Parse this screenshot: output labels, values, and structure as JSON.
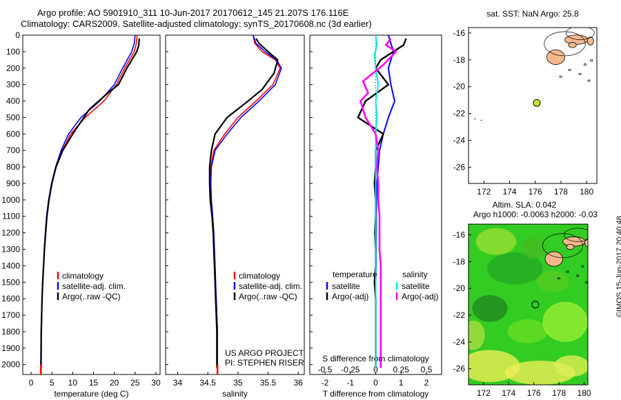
{
  "header": {
    "line1": "Argo profile: AO 5901910_311 10-Jun-2017 20170612_145 21.207S 176.116E",
    "line2": "Climatology: CARS2009. Satellite-adjusted climatology: synTS_20170608.nc (3d earlier)"
  },
  "side_stamp": "©IMOS 15-Jun-2017 20:40:48",
  "colors": {
    "climatology": "#ff0000",
    "satellite": "#0000ff",
    "argo": "#000000",
    "salinity_satellite": "#00e5ee",
    "salinity_argo": "#ff00ff",
    "land": "#f4b88e",
    "argo_dot": "#c8e632",
    "sla_green": "#33cc22",
    "sla_yellow": "#eeee55"
  },
  "chart_data": [
    {
      "id": "temperature",
      "type": "line",
      "xlabel": "temperature (deg C)",
      "xlim": [
        -2,
        31
      ],
      "ylim": [
        2060,
        0
      ],
      "xticks": [
        0,
        5,
        10,
        15,
        20,
        25,
        30
      ],
      "yticks": [
        0,
        100,
        200,
        300,
        400,
        500,
        600,
        700,
        800,
        900,
        1000,
        1100,
        1200,
        1300,
        1400,
        1500,
        1600,
        1700,
        1800,
        1900,
        2000
      ],
      "legend": [
        "climatology",
        "satellite-adj. clim.",
        "Argo(..raw -QC)"
      ],
      "series": [
        {
          "name": "climatology",
          "x": [
            25.5,
            25.3,
            24.8,
            22.5,
            20.5,
            17.5,
            13.0,
            9.5,
            7.5,
            6.0,
            5.0,
            4.3,
            3.8,
            3.5,
            3.2,
            3.0,
            2.8,
            2.65,
            2.55,
            2.45,
            2.4,
            2.35
          ],
          "y": [
            0,
            50,
            100,
            200,
            300,
            400,
            500,
            600,
            700,
            800,
            900,
            1000,
            1100,
            1200,
            1300,
            1400,
            1500,
            1600,
            1700,
            1800,
            1900,
            2020
          ]
        },
        {
          "name": "satellite-adj. clim.",
          "x": [
            25.0,
            24.8,
            24.2,
            22.0,
            20.0,
            16.5,
            12.0,
            9.0,
            7.2,
            5.9,
            4.9,
            4.2,
            3.7,
            3.4,
            3.15,
            2.95,
            2.75,
            2.6,
            2.5,
            2.4,
            2.35,
            2.3
          ],
          "y": [
            0,
            50,
            100,
            200,
            300,
            400,
            500,
            600,
            700,
            800,
            900,
            1000,
            1100,
            1200,
            1300,
            1400,
            1500,
            1600,
            1700,
            1800,
            1900,
            2020
          ]
        },
        {
          "name": "Argo(..raw -QC)",
          "x": [
            26.0,
            25.9,
            25.4,
            23.0,
            21.0,
            18.5,
            14.0,
            10.0,
            7.6,
            6.0,
            5.0,
            4.3,
            3.8,
            3.5,
            3.2,
            3.0,
            2.8,
            2.65,
            2.55,
            2.45,
            2.4
          ],
          "y": [
            20,
            60,
            100,
            200,
            300,
            350,
            450,
            600,
            700,
            800,
            900,
            1000,
            1100,
            1200,
            1300,
            1400,
            1500,
            1600,
            1700,
            1800,
            2020
          ]
        }
      ]
    },
    {
      "id": "salinity",
      "type": "line",
      "xlabel": "salinity",
      "xlim": [
        33.8,
        36.1
      ],
      "ylim": [
        2060,
        0
      ],
      "xticks": [
        34,
        34.5,
        35,
        35.5,
        36
      ],
      "legend": [
        "climatology",
        "satellite-adj. clim.",
        "Argo(..raw -QC)"
      ],
      "annotation": [
        "US ARGO PROJECT",
        "PI: STEPHEN RISER"
      ],
      "series": [
        {
          "name": "climatology",
          "x": [
            35.25,
            35.28,
            35.4,
            35.62,
            35.7,
            35.58,
            35.3,
            35.0,
            34.78,
            34.6,
            34.55,
            34.55,
            34.56,
            34.58,
            34.6,
            34.61,
            34.62,
            34.63,
            34.64,
            34.65,
            34.66,
            34.66
          ],
          "y": [
            0,
            50,
            100,
            150,
            200,
            300,
            400,
            500,
            600,
            700,
            800,
            900,
            1000,
            1100,
            1200,
            1300,
            1400,
            1500,
            1600,
            1700,
            1800,
            2020
          ]
        },
        {
          "name": "satellite-adj. clim.",
          "x": [
            35.25,
            35.3,
            35.45,
            35.64,
            35.72,
            35.62,
            35.35,
            35.05,
            34.82,
            34.62,
            34.56,
            34.55,
            34.56,
            34.58,
            34.6,
            34.61,
            34.62,
            34.63,
            34.64,
            34.65,
            34.66,
            34.66
          ],
          "y": [
            0,
            50,
            100,
            150,
            200,
            300,
            400,
            500,
            600,
            700,
            800,
            900,
            1000,
            1100,
            1200,
            1300,
            1400,
            1500,
            1600,
            1700,
            1800,
            2020
          ]
        },
        {
          "name": "Argo(..raw -QC)",
          "x": [
            35.3,
            35.35,
            35.5,
            35.66,
            35.6,
            35.4,
            35.1,
            34.82,
            34.62,
            34.56,
            34.53,
            34.53,
            34.54,
            34.57,
            34.59,
            34.6,
            34.61,
            34.62,
            34.63,
            34.64,
            34.65,
            34.65
          ],
          "y": [
            20,
            50,
            100,
            150,
            230,
            330,
            420,
            500,
            600,
            700,
            800,
            900,
            1000,
            1100,
            1200,
            1300,
            1400,
            1500,
            1600,
            1700,
            1800,
            2020
          ]
        }
      ]
    },
    {
      "id": "difference",
      "type": "line",
      "xlabel": "T difference from climatology",
      "x2label": "S difference from climatology",
      "xlim": [
        -2.6,
        2.6
      ],
      "ylim": [
        2060,
        0
      ],
      "xticks": [
        -2,
        -1,
        0,
        1,
        2
      ],
      "x2ticks": [
        "-0.5",
        "-0.25",
        "0",
        "0.25",
        "0.5"
      ],
      "legend_titles": [
        "temperature",
        "salinity"
      ],
      "legend": [
        "satellite",
        "Argo(-adj)",
        "satellite",
        "Argo(-adj)"
      ],
      "series": [
        {
          "name": "satellite",
          "x": [
            0.5,
            0.6,
            0.7,
            0.5,
            0.6,
            0.75,
            0.5,
            0.3,
            0.15,
            0.1,
            0.05,
            0.03,
            0.02,
            0.02,
            0.01,
            0.01,
            0.0,
            0.0,
            0.0,
            0.0
          ],
          "y": [
            0,
            50,
            100,
            200,
            300,
            400,
            500,
            600,
            700,
            800,
            900,
            1000,
            1100,
            1200,
            1300,
            1400,
            1500,
            1600,
            1800,
            2020
          ]
        },
        {
          "name": "Argo(-adj)",
          "x": [
            1.2,
            1.1,
            0.2,
            0.0,
            0.5,
            -0.4,
            -0.7,
            0.3,
            0.0,
            0.0,
            -0.05,
            0.0,
            0.0,
            -0.03,
            0.0,
            0.0,
            -0.05,
            0.0,
            0.0,
            0.0
          ],
          "y": [
            20,
            60,
            150,
            200,
            300,
            400,
            500,
            600,
            700,
            800,
            900,
            1000,
            1100,
            1200,
            1300,
            1400,
            1500,
            1600,
            1800,
            2020
          ]
        },
        {
          "name": "salinity satellite",
          "x": [
            0.0,
            0.05,
            -0.05,
            0.0,
            0.1,
            0.0,
            0.05,
            0.0,
            0.0,
            0.0,
            0.0,
            0.0,
            0.0,
            0.0,
            0.0,
            0.0,
            0.0,
            0.0,
            0.0
          ],
          "y": [
            0,
            60,
            120,
            200,
            300,
            400,
            500,
            600,
            700,
            800,
            900,
            1000,
            1100,
            1200,
            1300,
            1400,
            1500,
            1800,
            2020
          ]
        },
        {
          "name": "salinity Argo(-adj)",
          "x": [
            0.6,
            0.4,
            0.8,
            0.3,
            -0.5,
            -0.3,
            -0.6,
            -0.4,
            0.0,
            0.1,
            0.05,
            0.1,
            0.1,
            0.15,
            0.15,
            0.15,
            0.2,
            0.2,
            0.2
          ],
          "y": [
            20,
            60,
            100,
            180,
            280,
            350,
            400,
            500,
            600,
            700,
            800,
            900,
            1000,
            1100,
            1200,
            1300,
            1400,
            1600,
            2020
          ]
        }
      ]
    },
    {
      "id": "sst_map",
      "type": "scatter",
      "title": "sat. SST: NaN Argo: 25.8",
      "xlim": [
        170.8,
        180.8
      ],
      "ylim": [
        -27.2,
        -15.6
      ],
      "xticks": [
        172,
        174,
        176,
        178,
        180
      ],
      "yticks": [
        -16,
        -18,
        -20,
        -22,
        -24,
        -26
      ],
      "argo_position": {
        "lon": 176.116,
        "lat": -21.207
      }
    },
    {
      "id": "sla_map",
      "type": "heatmap",
      "title_line1": "Altim. SLA: 0.042",
      "title_line2": "Argo h1000: -0.0063 h2000: -0.03",
      "xlim": [
        170.8,
        180.3
      ],
      "ylim": [
        -27.2,
        -15.2
      ],
      "xticks": [
        172,
        174,
        176,
        178,
        180
      ],
      "yticks": [
        -16,
        -18,
        -20,
        -22,
        -24,
        -26
      ],
      "argo_position": {
        "lon": 176.116,
        "lat": -21.207
      }
    }
  ]
}
